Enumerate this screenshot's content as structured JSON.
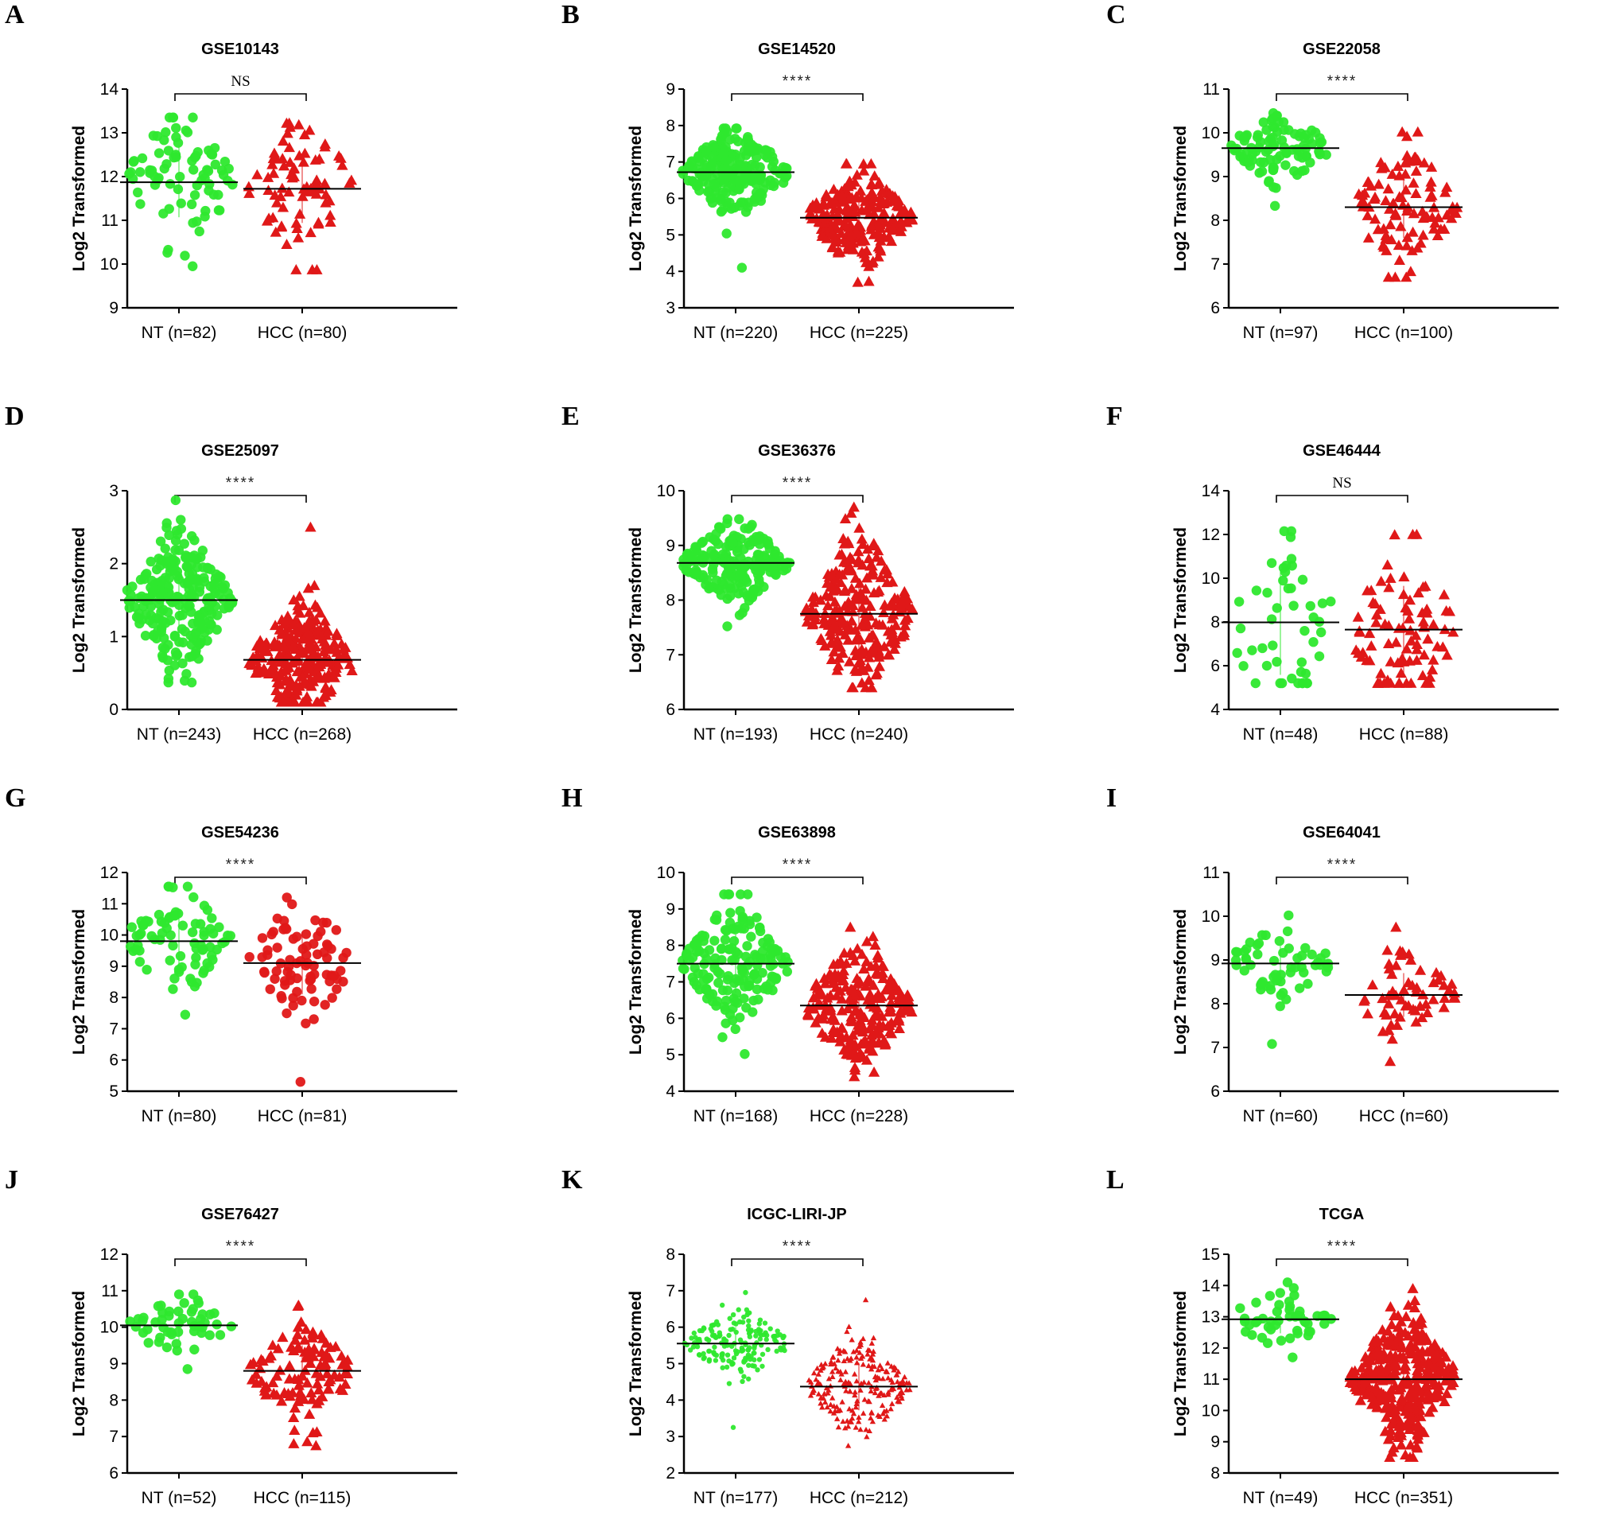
{
  "figure": {
    "marker_colors": {
      "NT": "#2ee82e",
      "HCC": "#e01818"
    },
    "mean_line_color": "#000000"
  },
  "chart_data": [
    {
      "panel": "A",
      "type": "scatter",
      "title": "GSE10143",
      "ylabel": "Log2 Transformed",
      "ylim": [
        9,
        14
      ],
      "yticks": [
        9,
        10,
        11,
        12,
        13,
        14
      ],
      "significance": "NS",
      "groups": [
        {
          "name": "NT",
          "label": "NT (n=82)",
          "n": 82,
          "mean": 11.87,
          "min": 9.95,
          "max": 13.35,
          "sd": 0.8,
          "marker": "circle"
        },
        {
          "name": "HCC",
          "label": "HCC (n=80)",
          "n": 80,
          "mean": 11.72,
          "min": 9.87,
          "max": 13.22,
          "sd": 0.78,
          "marker": "triangle"
        }
      ]
    },
    {
      "panel": "B",
      "type": "scatter",
      "title": "GSE14520",
      "ylabel": "Log2 Transformed",
      "ylim": [
        3,
        9
      ],
      "yticks": [
        3,
        4,
        5,
        6,
        7,
        8,
        9
      ],
      "significance": "****",
      "groups": [
        {
          "name": "NT",
          "label": "NT (n=220)",
          "n": 220,
          "mean": 6.72,
          "min": 4.1,
          "max": 7.92,
          "sd": 0.55,
          "marker": "circle"
        },
        {
          "name": "HCC",
          "label": "HCC (n=225)",
          "n": 225,
          "mean": 5.47,
          "min": 3.7,
          "max": 6.95,
          "sd": 0.6,
          "marker": "triangle"
        }
      ]
    },
    {
      "panel": "C",
      "type": "scatter",
      "title": "GSE22058",
      "ylabel": "Log2 Transformed",
      "ylim": [
        6,
        11
      ],
      "yticks": [
        6,
        7,
        8,
        9,
        10,
        11
      ],
      "significance": "****",
      "groups": [
        {
          "name": "NT",
          "label": "NT (n=97)",
          "n": 97,
          "mean": 9.65,
          "min": 8.33,
          "max": 10.45,
          "sd": 0.35,
          "marker": "circle"
        },
        {
          "name": "HCC",
          "label": "HCC (n=100)",
          "n": 100,
          "mean": 8.3,
          "min": 6.7,
          "max": 10.02,
          "sd": 0.7,
          "marker": "triangle"
        }
      ]
    },
    {
      "panel": "D",
      "type": "scatter",
      "title": "GSE25097",
      "ylabel": "Log2 Transformed",
      "ylim": [
        0,
        3
      ],
      "yticks": [
        0,
        1,
        2,
        3
      ],
      "significance": "****",
      "groups": [
        {
          "name": "NT",
          "label": "NT (n=243)",
          "n": 243,
          "mean": 1.5,
          "min": 0.37,
          "max": 2.87,
          "sd": 0.45,
          "marker": "circle"
        },
        {
          "name": "HCC",
          "label": "HCC (n=268)",
          "n": 268,
          "mean": 0.68,
          "min": 0.1,
          "max": 2.5,
          "sd": 0.35,
          "marker": "triangle"
        }
      ]
    },
    {
      "panel": "E",
      "type": "scatter",
      "title": "GSE36376",
      "ylabel": "Log2 Transformed",
      "ylim": [
        6,
        10
      ],
      "yticks": [
        6,
        7,
        8,
        9,
        10
      ],
      "significance": "****",
      "groups": [
        {
          "name": "NT",
          "label": "NT (n=193)",
          "n": 193,
          "mean": 8.68,
          "min": 7.52,
          "max": 9.48,
          "sd": 0.35,
          "marker": "circle"
        },
        {
          "name": "HCC",
          "label": "HCC (n=240)",
          "n": 240,
          "mean": 7.75,
          "min": 6.4,
          "max": 9.7,
          "sd": 0.65,
          "marker": "triangle"
        }
      ]
    },
    {
      "panel": "F",
      "type": "scatter",
      "title": "GSE46444",
      "ylabel": "Log2 Transformed",
      "ylim": [
        4,
        14
      ],
      "yticks": [
        4,
        6,
        8,
        10,
        12,
        14
      ],
      "significance": "NS",
      "groups": [
        {
          "name": "NT",
          "label": "NT (n=48)",
          "n": 48,
          "mean": 7.98,
          "min": 5.2,
          "max": 12.15,
          "sd": 2.4,
          "marker": "circle"
        },
        {
          "name": "HCC",
          "label": "HCC (n=88)",
          "n": 88,
          "mean": 7.65,
          "min": 5.2,
          "max": 12.0,
          "sd": 2.0,
          "marker": "triangle"
        }
      ]
    },
    {
      "panel": "G",
      "type": "scatter",
      "title": "GSE54236",
      "ylabel": "Log2 Transformed",
      "ylim": [
        5,
        12
      ],
      "yticks": [
        5,
        6,
        7,
        8,
        9,
        10,
        11,
        12
      ],
      "significance": "****",
      "groups": [
        {
          "name": "NT",
          "label": "NT (n=80)",
          "n": 80,
          "mean": 9.8,
          "min": 7.45,
          "max": 11.55,
          "sd": 0.8,
          "marker": "circle"
        },
        {
          "name": "HCC",
          "label": "HCC (n=81)",
          "n": 81,
          "mean": 9.1,
          "min": 5.3,
          "max": 11.2,
          "sd": 1.0,
          "marker": "circle"
        }
      ]
    },
    {
      "panel": "H",
      "type": "scatter",
      "title": "GSE63898",
      "ylabel": "Log2 Transformed",
      "ylim": [
        4,
        10
      ],
      "yticks": [
        4,
        5,
        6,
        7,
        8,
        9,
        10
      ],
      "significance": "****",
      "groups": [
        {
          "name": "NT",
          "label": "NT (n=168)",
          "n": 168,
          "mean": 7.5,
          "min": 5.02,
          "max": 9.4,
          "sd": 0.8,
          "marker": "circle"
        },
        {
          "name": "HCC",
          "label": "HCC (n=228)",
          "n": 228,
          "mean": 6.35,
          "min": 4.4,
          "max": 8.5,
          "sd": 0.8,
          "marker": "triangle"
        }
      ]
    },
    {
      "panel": "I",
      "type": "scatter",
      "title": "GSE64041",
      "ylabel": "Log2 Transformed",
      "ylim": [
        6,
        11
      ],
      "yticks": [
        6,
        7,
        8,
        9,
        10,
        11
      ],
      "significance": "****",
      "groups": [
        {
          "name": "NT",
          "label": "NT (n=60)",
          "n": 60,
          "mean": 8.92,
          "min": 7.08,
          "max": 10.02,
          "sd": 0.4,
          "marker": "circle"
        },
        {
          "name": "HCC",
          "label": "HCC (n=60)",
          "n": 60,
          "mean": 8.2,
          "min": 6.68,
          "max": 9.75,
          "sd": 0.5,
          "marker": "triangle"
        }
      ]
    },
    {
      "panel": "J",
      "type": "scatter",
      "title": "GSE76427",
      "ylabel": "Log2 Transformed",
      "ylim": [
        6,
        12
      ],
      "yticks": [
        6,
        7,
        8,
        9,
        10,
        11,
        12
      ],
      "significance": "****",
      "groups": [
        {
          "name": "NT",
          "label": "NT (n=52)",
          "n": 52,
          "mean": 10.05,
          "min": 8.85,
          "max": 10.9,
          "sd": 0.4,
          "marker": "circle"
        },
        {
          "name": "HCC",
          "label": "HCC (n=115)",
          "n": 115,
          "mean": 8.8,
          "min": 6.75,
          "max": 10.6,
          "sd": 0.7,
          "marker": "triangle"
        }
      ]
    },
    {
      "panel": "K",
      "type": "scatter",
      "title": "ICGC-LIRI-JP",
      "ylabel": "Log2 Transformed",
      "ylim": [
        2,
        8
      ],
      "yticks": [
        2,
        3,
        4,
        5,
        6,
        7,
        8
      ],
      "significance": "****",
      "groups": [
        {
          "name": "NT",
          "label": "NT (n=177)",
          "n": 177,
          "mean": 5.55,
          "min": 3.25,
          "max": 6.95,
          "sd": 0.45,
          "marker": "small-circle"
        },
        {
          "name": "HCC",
          "label": "HCC (n=212)",
          "n": 212,
          "mean": 4.37,
          "min": 2.75,
          "max": 6.75,
          "sd": 0.65,
          "marker": "small-triangle"
        }
      ]
    },
    {
      "panel": "L",
      "type": "scatter",
      "title": "TCGA",
      "ylabel": "Log2 Transformed",
      "ylim": [
        8,
        15
      ],
      "yticks": [
        8,
        9,
        10,
        11,
        12,
        13,
        14,
        15
      ],
      "significance": "****",
      "groups": [
        {
          "name": "NT",
          "label": "NT (n=49)",
          "n": 49,
          "mean": 12.92,
          "min": 11.7,
          "max": 14.1,
          "sd": 0.45,
          "marker": "circle"
        },
        {
          "name": "HCC",
          "label": "HCC (n=351)",
          "n": 351,
          "mean": 11.0,
          "min": 8.5,
          "max": 13.9,
          "sd": 1.0,
          "marker": "triangle"
        }
      ]
    }
  ]
}
